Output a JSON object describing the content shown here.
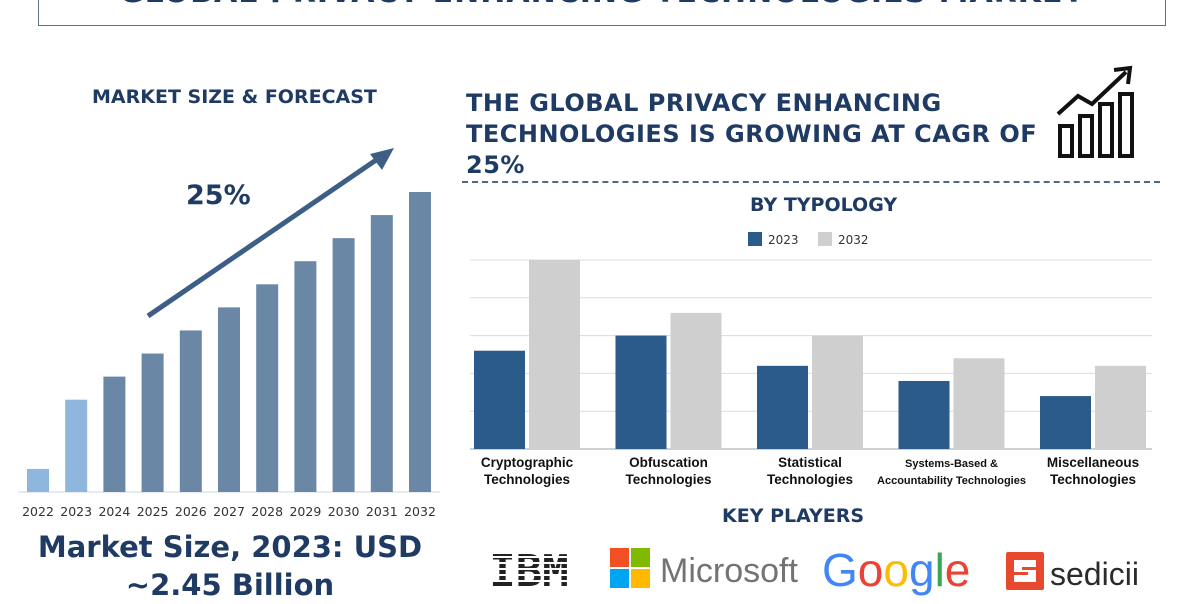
{
  "title": "GLOBAL PRIVACY ENHANCING TECHNOLOGIES MARKET",
  "left_panel": {
    "heading": "MARKET SIZE & FORECAST",
    "cagr_label": "25%",
    "market_size_line1": "Market Size, 2023: USD",
    "market_size_line2": "~2.45 Billion"
  },
  "headline": "THE GLOBAL PRIVACY ENHANCING TECHNOLOGIES IS GROWING AT CAGR OF 25%",
  "typology_heading": "BY TYPOLOGY",
  "key_players_heading": "KEY PLAYERS",
  "key_players": [
    "IBM",
    "Microsoft",
    "Google",
    "sedicii"
  ],
  "colors": {
    "forecast_bar": "#6b87a6",
    "highlight_bar": "#8fb6dc",
    "series_2023": "#2a5b8a",
    "series_2032": "#cfcfcf",
    "text": "#1f3b63"
  },
  "icons": [
    "growth-chart-icon",
    "trend-arrow-icon"
  ],
  "chart_data": [
    {
      "type": "bar",
      "categories": [
        "2022",
        "2023",
        "2024",
        "2025",
        "2026",
        "2027",
        "2028",
        "2029",
        "2030",
        "2031",
        "2032"
      ],
      "values": [
        1.0,
        4.0,
        5.0,
        6.0,
        7.0,
        8.0,
        9.0,
        10.0,
        11.0,
        12.0,
        13.0
      ],
      "highlight": [
        "2022",
        "2023"
      ],
      "title": "MARKET SIZE & FORECAST",
      "annotation": "25%",
      "ylim": [
        0,
        13.0
      ],
      "grid": false
    },
    {
      "type": "bar",
      "title": "BY TYPOLOGY",
      "categories": [
        [
          "Cryptographic",
          "Technologies"
        ],
        [
          "Obfuscation",
          "Technologies"
        ],
        [
          "Statistical",
          "Technologies"
        ],
        [
          "Systems-Based &",
          "Accountability Technologies"
        ],
        [
          "Miscellaneous",
          "Technologies"
        ]
      ],
      "series": [
        {
          "name": "2023",
          "values": [
            2.6,
            3.0,
            2.2,
            1.8,
            1.4
          ]
        },
        {
          "name": "2032",
          "values": [
            5.0,
            3.6,
            3.0,
            2.4,
            2.2
          ]
        }
      ],
      "ylim": [
        0,
        5.0
      ],
      "grid": true,
      "legend": "top-center"
    }
  ]
}
